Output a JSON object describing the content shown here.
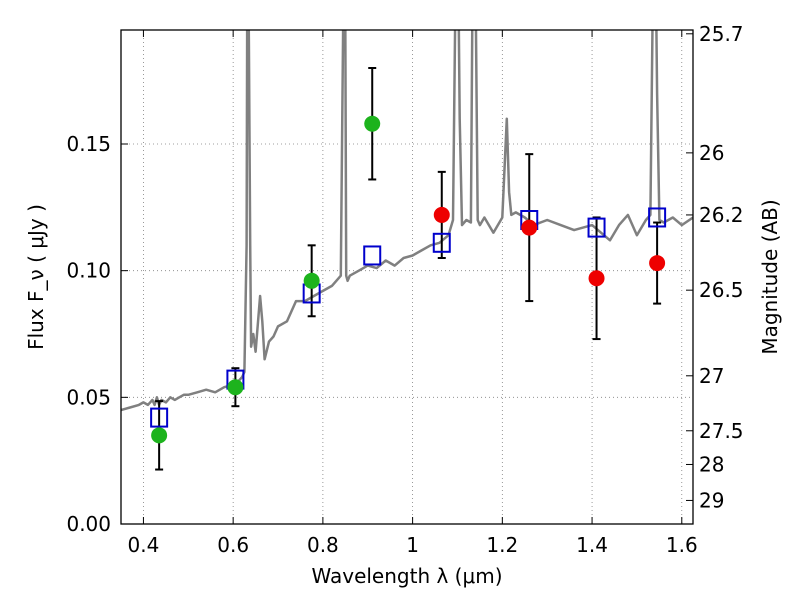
{
  "chart_data": {
    "type": "scatter",
    "xlabel": "Wavelength  λ (μm)",
    "ylabel": "Flux  F_ν  ( μJy )",
    "ylabel_right": "Magnitude (AB)",
    "xlim": [
      0.35,
      1.625
    ],
    "ylim": [
      0.0,
      0.195
    ],
    "grid": true,
    "x_ticks": [
      0.4,
      0.6,
      0.8,
      1.0,
      1.2,
      1.4,
      1.6
    ],
    "x_tick_labels": [
      "0.4",
      "0.6",
      "0.8",
      "1",
      "1.2",
      "1.4",
      "1.6"
    ],
    "y_ticks": [
      0.0,
      0.05,
      0.1,
      0.15
    ],
    "y_tick_labels": [
      "0.00",
      "0.05",
      "0.10",
      "0.15"
    ],
    "right_ticks": [
      {
        "label": "25.7",
        "flux": 0.1935
      },
      {
        "label": "26",
        "flux": 0.1465
      },
      {
        "label": "26.2",
        "flux": 0.122
      },
      {
        "label": "26.5",
        "flux": 0.0923
      },
      {
        "label": "27",
        "flux": 0.0585
      },
      {
        "label": "27.5",
        "flux": 0.0368
      },
      {
        "label": "28",
        "flux": 0.0235
      },
      {
        "label": "29",
        "flux": 0.0093
      }
    ],
    "colors": {
      "spectrum": "#808080",
      "model_square": "#0000cc",
      "green_point": "#1db31d",
      "red_point": "#ee0000",
      "errorbar": "#000000",
      "grid": "#808080"
    },
    "series": [
      {
        "key": "model_spectrum",
        "style": "line",
        "x": [
          0.35,
          0.37,
          0.39,
          0.4,
          0.41,
          0.42,
          0.425,
          0.43,
          0.435,
          0.44,
          0.45,
          0.46,
          0.47,
          0.48,
          0.49,
          0.5,
          0.52,
          0.54,
          0.56,
          0.58,
          0.6,
          0.61,
          0.62,
          0.625,
          0.63,
          0.632,
          0.635,
          0.638,
          0.64,
          0.645,
          0.65,
          0.66,
          0.665,
          0.67,
          0.68,
          0.69,
          0.7,
          0.72,
          0.74,
          0.76,
          0.78,
          0.8,
          0.82,
          0.84,
          0.845,
          0.848,
          0.85,
          0.852,
          0.855,
          0.86,
          0.88,
          0.9,
          0.92,
          0.94,
          0.96,
          0.98,
          1.0,
          1.02,
          1.04,
          1.06,
          1.08,
          1.09,
          1.095,
          1.1,
          1.105,
          1.11,
          1.12,
          1.13,
          1.135,
          1.14,
          1.145,
          1.15,
          1.16,
          1.18,
          1.2,
          1.21,
          1.215,
          1.22,
          1.23,
          1.25,
          1.27,
          1.3,
          1.33,
          1.36,
          1.4,
          1.42,
          1.44,
          1.46,
          1.48,
          1.5,
          1.52,
          1.53,
          1.535,
          1.54,
          1.545,
          1.55,
          1.56,
          1.58,
          1.6,
          1.625
        ],
        "y": [
          0.045,
          0.046,
          0.047,
          0.048,
          0.047,
          0.049,
          0.047,
          0.05,
          0.047,
          0.049,
          0.048,
          0.05,
          0.049,
          0.05,
          0.051,
          0.051,
          0.052,
          0.053,
          0.052,
          0.054,
          0.055,
          0.056,
          0.058,
          0.06,
          0.11,
          0.25,
          0.19,
          0.11,
          0.07,
          0.075,
          0.068,
          0.09,
          0.08,
          0.065,
          0.072,
          0.074,
          0.078,
          0.08,
          0.088,
          0.088,
          0.09,
          0.092,
          0.094,
          0.098,
          0.195,
          0.25,
          0.2,
          0.098,
          0.096,
          0.098,
          0.1,
          0.102,
          0.101,
          0.104,
          0.102,
          0.105,
          0.106,
          0.108,
          0.11,
          0.111,
          0.114,
          0.12,
          0.2,
          0.25,
          0.16,
          0.118,
          0.12,
          0.119,
          0.25,
          0.22,
          0.12,
          0.118,
          0.121,
          0.115,
          0.121,
          0.16,
          0.131,
          0.122,
          0.123,
          0.121,
          0.118,
          0.12,
          0.118,
          0.116,
          0.118,
          0.115,
          0.112,
          0.118,
          0.122,
          0.114,
          0.12,
          0.122,
          0.2,
          0.25,
          0.17,
          0.12,
          0.119,
          0.121,
          0.118,
          0.121
        ]
      },
      {
        "key": "model_photometry",
        "style": "open-square",
        "x": [
          0.435,
          0.605,
          0.775,
          0.91,
          1.065,
          1.26,
          1.41,
          1.545
        ],
        "y": [
          0.042,
          0.057,
          0.091,
          0.106,
          0.111,
          0.12,
          0.117,
          0.121
        ]
      },
      {
        "key": "detections_optical",
        "style": "filled-circle",
        "color": "green",
        "x": [
          0.435,
          0.605,
          0.775,
          0.91
        ],
        "y": [
          0.035,
          0.054,
          0.096,
          0.158
        ],
        "err": [
          0.0135,
          0.0075,
          0.014,
          0.022
        ]
      },
      {
        "key": "detections_nir",
        "style": "filled-circle",
        "color": "red",
        "x": [
          1.065,
          1.26,
          1.41,
          1.545
        ],
        "y": [
          0.122,
          0.117,
          0.097,
          0.103
        ],
        "err": [
          0.017,
          0.029,
          0.024,
          0.016
        ]
      }
    ]
  }
}
